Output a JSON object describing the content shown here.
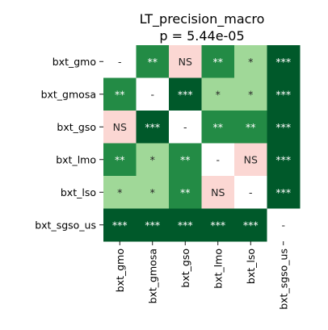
{
  "chart_data": {
    "type": "heatmap",
    "title_line1": "LT_precision_macro",
    "title_line2": "p = 5.44e-05",
    "row_labels": [
      "bxt_gmo",
      "bxt_gmosa",
      "bxt_gso",
      "bxt_lmo",
      "bxt_lso",
      "bxt_sgso_us"
    ],
    "col_labels": [
      "bxt_gmo",
      "bxt_gmosa",
      "bxt_gso",
      "bxt_lmo",
      "bxt_lso",
      "bxt_sgso_us"
    ],
    "cells": [
      [
        "-",
        "**",
        "NS",
        "**",
        "*",
        "***"
      ],
      [
        "**",
        "-",
        "***",
        "*",
        "*",
        "***"
      ],
      [
        "NS",
        "***",
        "-",
        "**",
        "**",
        "***"
      ],
      [
        "**",
        "*",
        "**",
        "-",
        "NS",
        "***"
      ],
      [
        "*",
        "*",
        "**",
        "NS",
        "-",
        "***"
      ],
      [
        "***",
        "***",
        "***",
        "***",
        "***",
        "-"
      ]
    ],
    "color_map": {
      "-": "#ffffff",
      "NS": "#fbd7d3",
      "*": "#a0d898",
      "**": "#238b45",
      "***": "#00592a"
    },
    "text_color_map": {
      "-": "#262626",
      "NS": "#262626",
      "*": "#262626",
      "**": "#ffffff",
      "***": "#ffffff"
    }
  }
}
